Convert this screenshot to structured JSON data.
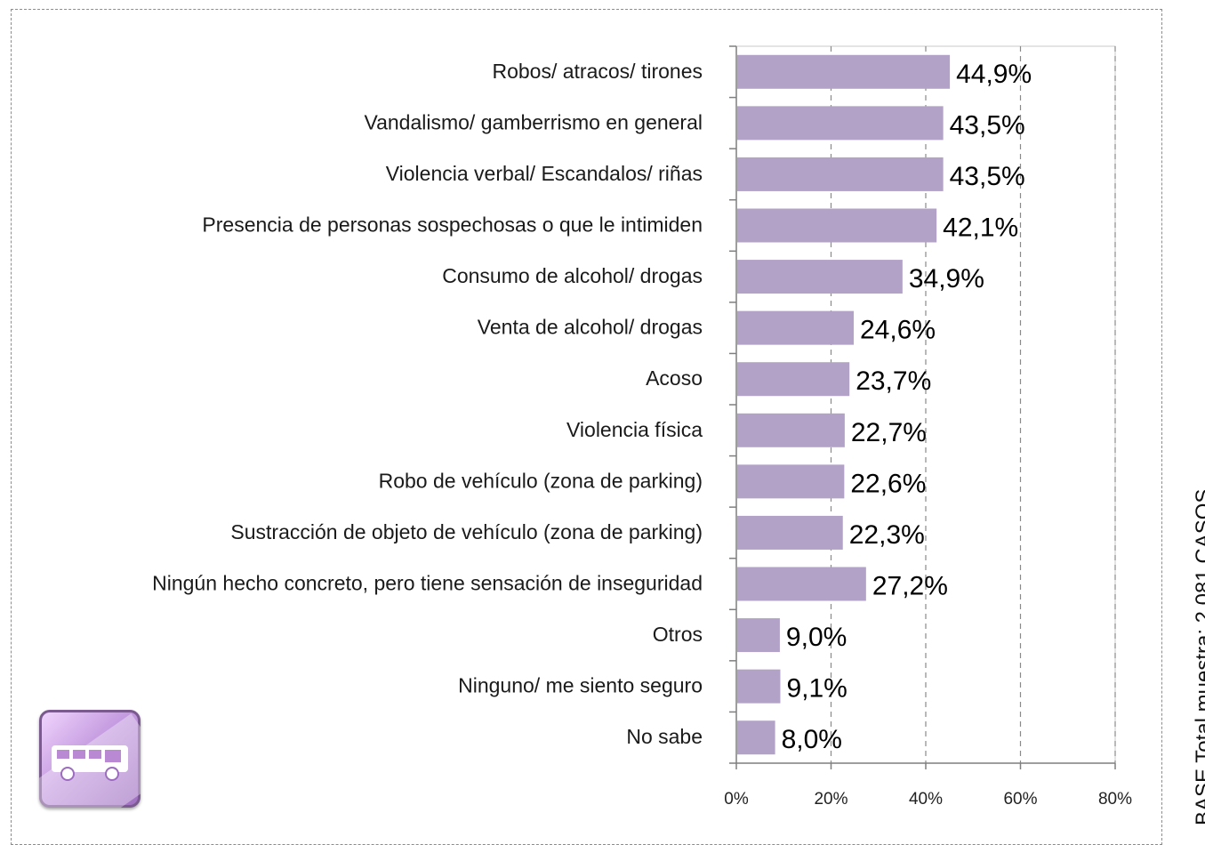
{
  "chart_data": {
    "type": "bar",
    "orientation": "horizontal",
    "categories": [
      "Robos/ atracos/ tirones",
      "Vandalismo/ gamberrismo en general",
      "Violencia verbal/ Escandalos/ riñas",
      "Presencia de personas sospechosas o que le intimiden",
      "Consumo de alcohol/ drogas",
      "Venta de alcohol/ drogas",
      "Acoso",
      "Violencia física",
      "Robo de vehículo (zona de parking)",
      "Sustracción de objeto de vehículo (zona de parking)",
      "Ningún hecho concreto, pero tiene sensación de inseguridad",
      "Otros",
      "Ninguno/ me siento seguro",
      "No sabe"
    ],
    "values": [
      44.9,
      43.5,
      43.5,
      42.1,
      34.9,
      24.6,
      23.7,
      22.7,
      22.6,
      22.3,
      27.2,
      9.0,
      9.1,
      8.0
    ],
    "value_labels": [
      "44,9%",
      "43,5%",
      "43,5%",
      "42,1%",
      "34,9%",
      "24,6%",
      "23,7%",
      "22,7%",
      "22,6%",
      "22,3%",
      "27,2%",
      "9,0%",
      "9,1%",
      "8,0%"
    ],
    "xlim": [
      0,
      80
    ],
    "x_ticks": [
      0,
      20,
      40,
      60,
      80
    ],
    "x_tick_labels": [
      "0%",
      "20%",
      "40%",
      "60%",
      "80%"
    ],
    "grid": "vertical dashed",
    "bar_color": "#b3a2c7",
    "title": "",
    "xlabel": "",
    "ylabel": ""
  },
  "side_note": "BASE Total muestra: 2.081 CASOS",
  "badge": {
    "icon": "bus-icon"
  }
}
